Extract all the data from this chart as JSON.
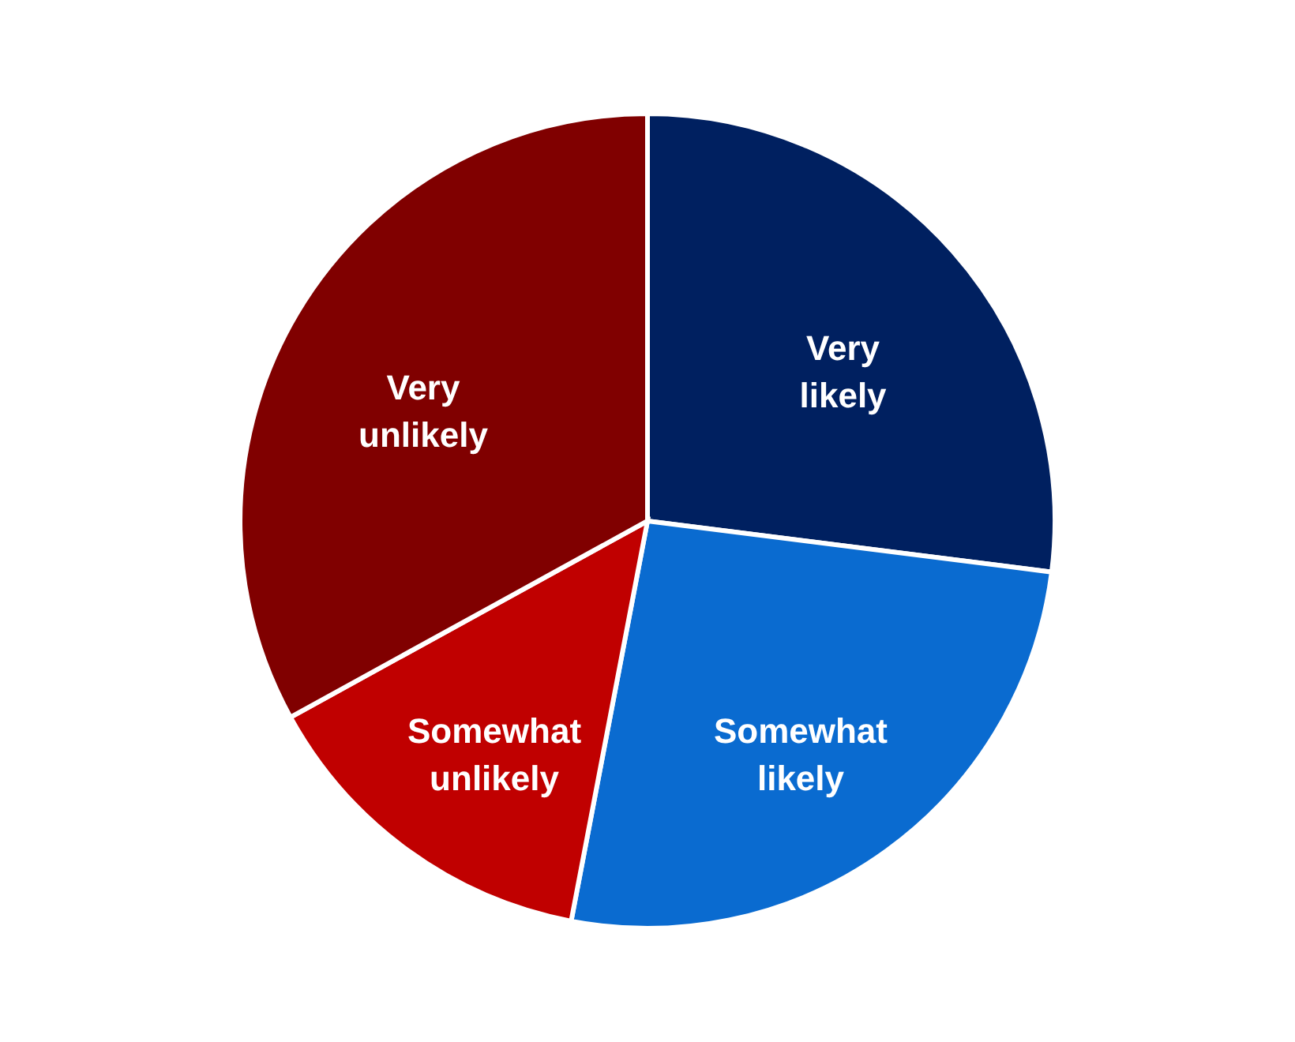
{
  "chart_data": {
    "type": "pie",
    "categories": [
      "Very likely",
      "Somewhat likely",
      "Somewhat unlikely",
      "Very unlikely"
    ],
    "values": [
      27,
      26,
      14,
      33
    ],
    "colors": [
      "#002060",
      "#0a6bd0",
      "#c00000",
      "#800000"
    ]
  }
}
